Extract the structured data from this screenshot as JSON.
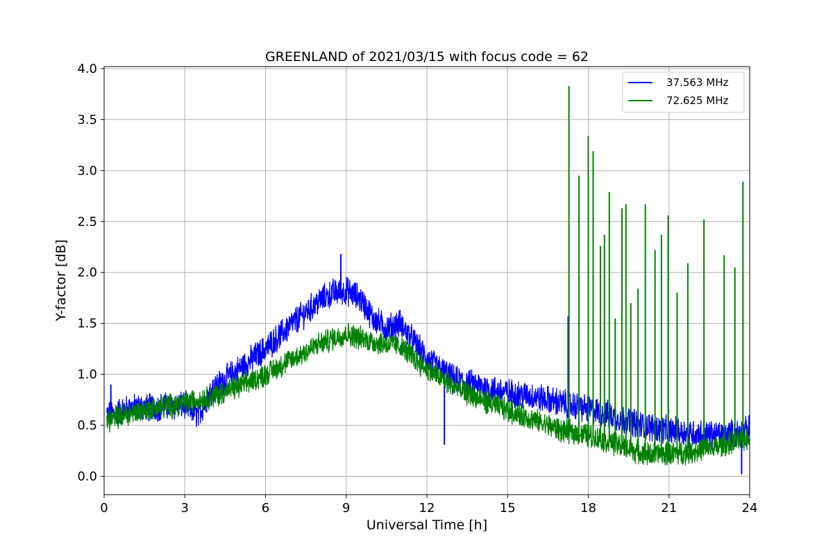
{
  "chart_data": {
    "type": "line",
    "title": "GREENLAND of 2021/03/15 with focus code = 62",
    "xlabel": "Universal Time [h]",
    "ylabel": "Y-factor [dB]",
    "xlim": [
      0,
      24
    ],
    "ylim": [
      -0.18,
      4.02
    ],
    "xticks": [
      0,
      3,
      6,
      9,
      12,
      15,
      18,
      21,
      24
    ],
    "xtick_labels": [
      "0",
      "3",
      "6",
      "9",
      "12",
      "15",
      "18",
      "21",
      "24"
    ],
    "yticks": [
      0.0,
      0.5,
      1.0,
      1.5,
      2.0,
      2.5,
      3.0,
      3.5,
      4.0
    ],
    "ytick_labels": [
      "0.0",
      "0.5",
      "1.0",
      "1.5",
      "2.0",
      "2.5",
      "3.0",
      "3.5",
      "4.0"
    ],
    "grid": true,
    "legend_position": "top-right",
    "series": [
      {
        "name": "37.563 MHz",
        "color": "#0000ff",
        "noise_amplitude": 0.12,
        "x": [
          0.1,
          1,
          2,
          3,
          3.5,
          4,
          5,
          6,
          7,
          8,
          8.5,
          9,
          9.5,
          10,
          10.5,
          11,
          12,
          13,
          14,
          15,
          16,
          17,
          18,
          19,
          20,
          21,
          22,
          23,
          24
        ],
        "y": [
          0.6,
          0.67,
          0.68,
          0.7,
          0.6,
          0.85,
          1.05,
          1.25,
          1.5,
          1.72,
          1.8,
          1.82,
          1.75,
          1.55,
          1.45,
          1.5,
          1.15,
          0.95,
          0.88,
          0.82,
          0.78,
          0.72,
          0.66,
          0.58,
          0.5,
          0.45,
          0.42,
          0.4,
          0.45
        ],
        "spikes": [
          {
            "x": 0.25,
            "y": 0.9
          },
          {
            "x": 8.8,
            "y": 2.18
          },
          {
            "x": 12.65,
            "y": 0.31
          },
          {
            "x": 17.25,
            "y": 1.57
          },
          {
            "x": 23.7,
            "y": 0.02
          }
        ]
      },
      {
        "name": "72.625 MHz",
        "color": "#008000",
        "noise_amplitude": 0.1,
        "x": [
          0.1,
          1,
          2,
          3,
          4,
          5,
          6,
          7,
          8,
          9,
          10,
          11,
          12,
          13,
          14,
          15,
          16,
          17,
          18,
          19,
          20,
          21,
          22,
          23,
          24
        ],
        "y": [
          0.55,
          0.62,
          0.68,
          0.72,
          0.78,
          0.88,
          1.0,
          1.15,
          1.3,
          1.4,
          1.32,
          1.28,
          1.05,
          0.88,
          0.75,
          0.65,
          0.55,
          0.45,
          0.4,
          0.32,
          0.22,
          0.22,
          0.25,
          0.3,
          0.38
        ],
        "spikes": [
          {
            "x": 17.28,
            "y": 3.83
          },
          {
            "x": 17.65,
            "y": 2.95
          },
          {
            "x": 18.0,
            "y": 3.34
          },
          {
            "x": 18.18,
            "y": 3.19
          },
          {
            "x": 18.45,
            "y": 2.26
          },
          {
            "x": 18.6,
            "y": 2.37
          },
          {
            "x": 18.78,
            "y": 2.79
          },
          {
            "x": 19.0,
            "y": 1.55
          },
          {
            "x": 19.25,
            "y": 2.63
          },
          {
            "x": 19.4,
            "y": 2.67
          },
          {
            "x": 19.58,
            "y": 1.7
          },
          {
            "x": 19.85,
            "y": 1.84
          },
          {
            "x": 20.12,
            "y": 2.67
          },
          {
            "x": 20.48,
            "y": 2.22
          },
          {
            "x": 20.72,
            "y": 2.37
          },
          {
            "x": 20.97,
            "y": 2.56
          },
          {
            "x": 21.3,
            "y": 1.8
          },
          {
            "x": 21.7,
            "y": 2.09
          },
          {
            "x": 22.3,
            "y": 2.52
          },
          {
            "x": 23.05,
            "y": 2.17
          },
          {
            "x": 23.45,
            "y": 2.05
          },
          {
            "x": 23.75,
            "y": 2.89
          }
        ]
      }
    ]
  }
}
